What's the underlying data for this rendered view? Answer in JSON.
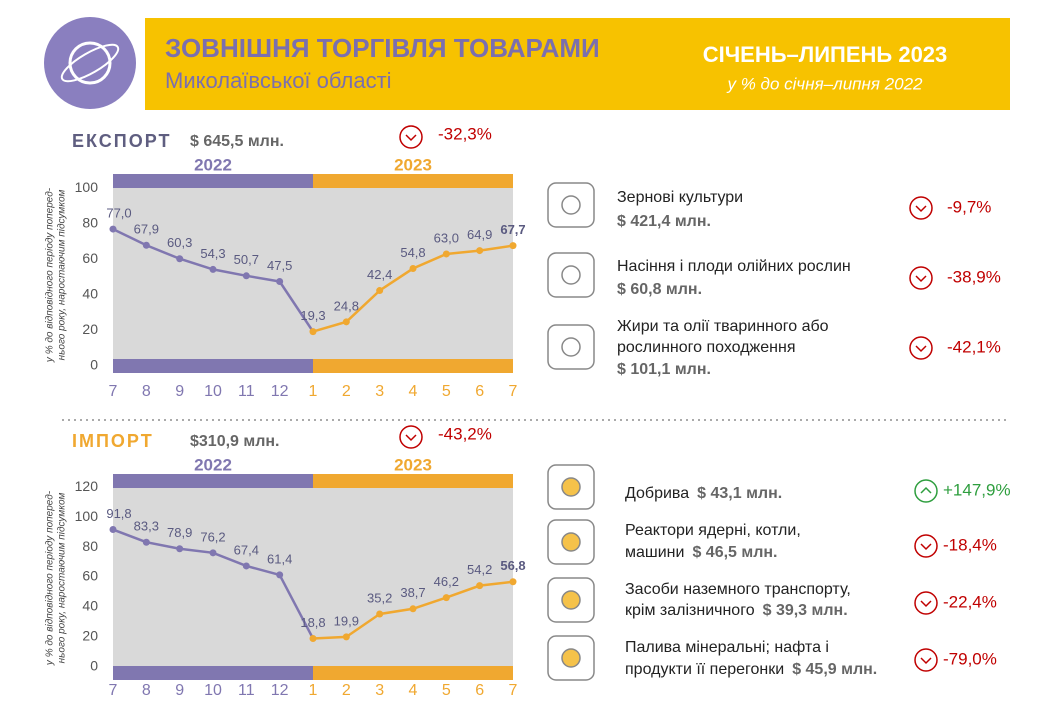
{
  "header": {
    "title": "ЗОВНІШНЯ ТОРГІВЛЯ ТОВАРАМИ",
    "subtitle": "Миколаївської області",
    "period": "СІЧЕНЬ–ЛИПЕНЬ 2023",
    "period_note": "у % до січня–липня 2022"
  },
  "sections": [
    {
      "title": "ЕКСПОРТ",
      "amount": "$ 645,5 млн.",
      "change": "-32,3%",
      "items": [
        {
          "name": [
            "Зернові культури"
          ],
          "amount": "$ 421,4 млн.",
          "change": "-9,7%"
        },
        {
          "name": [
            "Насіння і плоди олійних рослин"
          ],
          "amount": "$ 60,8 млн.",
          "change": "-38,9%"
        },
        {
          "name": [
            "Жири та олії тваринного або",
            "рослинного походження"
          ],
          "amount": "$ 101,1 млн.",
          "change": "-42,1%"
        }
      ]
    },
    {
      "title": "ІМПОРТ",
      "amount": "$310,9 млн.",
      "change": "-43,2%",
      "items": [
        {
          "name": [
            "Добрива"
          ],
          "amount": "$ 43,1 млн.",
          "change": "+147,9%"
        },
        {
          "name": [
            "Реактори ядерні, котли,",
            "машини"
          ],
          "amount": "$ 46,5 млн.",
          "change": "-18,4%"
        },
        {
          "name": [
            "Засоби наземного транспорту,",
            "крім залізничного"
          ],
          "amount": "$ 39,3 млн.",
          "change": "-22,4%"
        },
        {
          "name": [
            "Палива мінеральні; нафта і",
            "продукти її перегонки"
          ],
          "amount": "$ 45,9 млн.",
          "change": "-79,0%"
        }
      ]
    }
  ],
  "chart_data": [
    {
      "type": "line",
      "y_label": [
        "у % до відповідного періоду поперед-",
        "нього року, наростаючим підсумком"
      ],
      "categories": [
        "7",
        "8",
        "9",
        "10",
        "11",
        "12",
        "1",
        "2",
        "3",
        "4",
        "5",
        "6",
        "7"
      ],
      "series": [
        {
          "name": "2022",
          "color": "#8077b0",
          "values": [
            77.0,
            67.9,
            60.3,
            54.3,
            50.7,
            47.5,
            null,
            null,
            null,
            null,
            null,
            null,
            null
          ],
          "value_labels": [
            "77,0",
            "67,9",
            "60,3",
            "54,3",
            "50,7",
            "47,5",
            null,
            null,
            null,
            null,
            null,
            null,
            null
          ]
        },
        {
          "name": "2023",
          "color": "#f0a830",
          "values": [
            null,
            null,
            null,
            null,
            null,
            null,
            19.3,
            24.8,
            42.4,
            54.8,
            63.0,
            64.9,
            67.7
          ],
          "value_labels": [
            null,
            null,
            null,
            null,
            null,
            null,
            "19,3",
            "24,8",
            "42,4",
            "54,8",
            "63,0",
            "64,9",
            "67,7"
          ]
        }
      ],
      "ylim": [
        -4,
        108
      ],
      "yticks": [
        0,
        20,
        40,
        60,
        80,
        100
      ]
    },
    {
      "type": "line",
      "y_label": [
        "у % до відповідного періоду поперед-",
        "нього року, наростаючим підсумком"
      ],
      "categories": [
        "7",
        "8",
        "9",
        "10",
        "11",
        "12",
        "1",
        "2",
        "3",
        "4",
        "5",
        "6",
        "7"
      ],
      "series": [
        {
          "name": "2022",
          "color": "#8077b0",
          "values": [
            91.8,
            83.3,
            78.9,
            76.2,
            67.4,
            61.4,
            null,
            null,
            null,
            null,
            null,
            null,
            null
          ],
          "value_labels": [
            "91,8",
            "83,3",
            "78,9",
            "76,2",
            "67,4",
            "61,4",
            null,
            null,
            null,
            null,
            null,
            null,
            null
          ]
        },
        {
          "name": "2023",
          "color": "#f0a830",
          "values": [
            null,
            null,
            null,
            null,
            null,
            null,
            18.8,
            19.9,
            35.2,
            38.7,
            46.2,
            54.2,
            56.8
          ],
          "value_labels": [
            null,
            null,
            null,
            null,
            null,
            null,
            "18,8",
            "19,9",
            "35,2",
            "38,7",
            "46,2",
            "54,2",
            "56,8"
          ]
        }
      ],
      "ylim": [
        -9,
        129
      ],
      "yticks": [
        0,
        20,
        40,
        60,
        80,
        100,
        120
      ]
    }
  ]
}
